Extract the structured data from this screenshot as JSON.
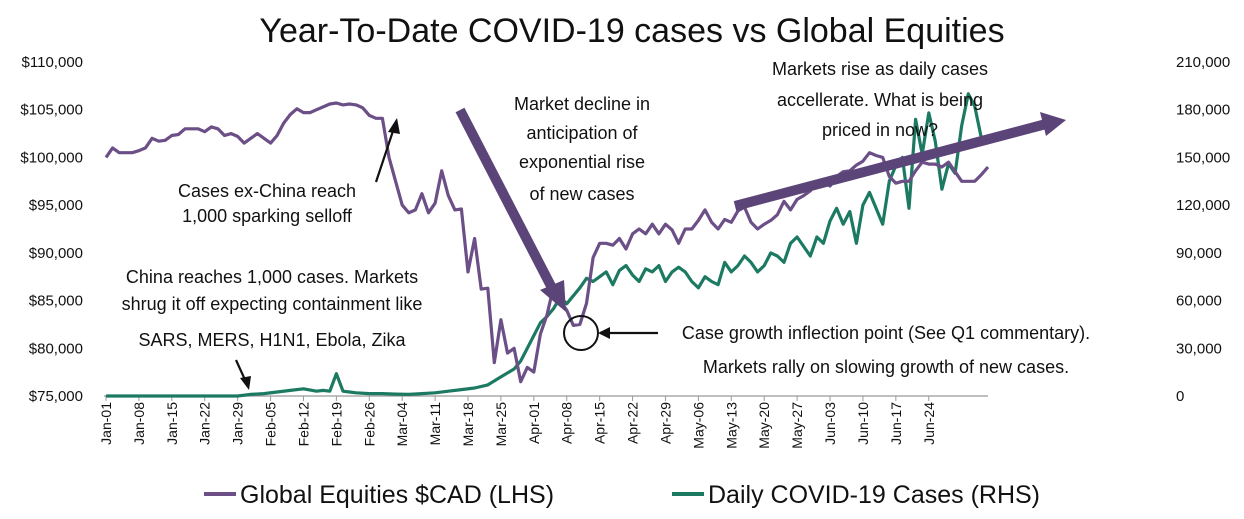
{
  "chart_data": {
    "type": "line",
    "title": "Year-To-Date COVID-19 cases vs Global Equities",
    "x_tick_labels": [
      "Jan-01",
      "Jan-08",
      "Jan-15",
      "Jan-22",
      "Jan-29",
      "Feb-05",
      "Feb-12",
      "Feb-19",
      "Feb-26",
      "Mar-04",
      "Mar-11",
      "Mar-18",
      "Mar-25",
      "Apr-01",
      "Apr-08",
      "Apr-15",
      "Apr-22",
      "Apr-29",
      "May-06",
      "May-13",
      "May-20",
      "May-27",
      "Jun-03",
      "Jun-10",
      "Jun-17",
      "Jun-24"
    ],
    "y_left": {
      "ticks": [
        "$75,000",
        "$80,000",
        "$85,000",
        "$90,000",
        "$95,000",
        "$100,000",
        "$105,000",
        "$110,000"
      ],
      "ylim": [
        75000,
        110000
      ]
    },
    "y_right": {
      "ticks": [
        "0",
        "30,000",
        "60,000",
        "90,000",
        "120,000",
        "150,000",
        "180,000",
        "210,000"
      ],
      "ylim": [
        0,
        210000
      ]
    },
    "series": [
      {
        "name": "Global Equities $CAD (LHS)",
        "axis": "left",
        "color": "#6b4f86",
        "points": [
          [
            0,
            100000
          ],
          [
            1,
            101000
          ],
          [
            2,
            100500
          ],
          [
            3,
            100500
          ],
          [
            4,
            100500
          ],
          [
            5,
            100700
          ],
          [
            6,
            101000
          ],
          [
            7,
            102000
          ],
          [
            8,
            101700
          ],
          [
            9,
            101800
          ],
          [
            10,
            102300
          ],
          [
            11,
            102400
          ],
          [
            12,
            103000
          ],
          [
            13,
            103000
          ],
          [
            14,
            103000
          ],
          [
            15,
            102700
          ],
          [
            16,
            103200
          ],
          [
            17,
            103000
          ],
          [
            18,
            102300
          ],
          [
            19,
            102500
          ],
          [
            20,
            102200
          ],
          [
            21,
            101500
          ],
          [
            22,
            102000
          ],
          [
            23,
            102500
          ],
          [
            24,
            102000
          ],
          [
            25,
            101500
          ],
          [
            26,
            102300
          ],
          [
            27,
            103600
          ],
          [
            28,
            104500
          ],
          [
            29,
            105100
          ],
          [
            30,
            104700
          ],
          [
            31,
            104700
          ],
          [
            32,
            105000
          ],
          [
            33,
            105300
          ],
          [
            34,
            105600
          ],
          [
            35,
            105700
          ],
          [
            36,
            105500
          ],
          [
            37,
            105600
          ],
          [
            38,
            105500
          ],
          [
            39,
            105200
          ],
          [
            40,
            104400
          ],
          [
            41,
            104100
          ],
          [
            42,
            104100
          ],
          [
            43,
            100000
          ],
          [
            44,
            97500
          ],
          [
            45,
            95000
          ],
          [
            46,
            94200
          ],
          [
            47,
            94500
          ],
          [
            48,
            96200
          ],
          [
            49,
            94200
          ],
          [
            50,
            95200
          ],
          [
            51,
            98600
          ],
          [
            52,
            96000
          ],
          [
            53,
            94500
          ],
          [
            54,
            94600
          ],
          [
            55,
            88000
          ],
          [
            56,
            91500
          ],
          [
            57,
            86200
          ],
          [
            58,
            86300
          ],
          [
            59,
            78500
          ],
          [
            60,
            83000
          ],
          [
            61,
            79500
          ],
          [
            62,
            80000
          ],
          [
            63,
            76500
          ],
          [
            64,
            78000
          ],
          [
            65,
            77500
          ],
          [
            66,
            81500
          ],
          [
            67,
            83500
          ],
          [
            68,
            86500
          ],
          [
            69,
            85000
          ],
          [
            70,
            84000
          ],
          [
            71,
            82400
          ],
          [
            72,
            82500
          ],
          [
            73,
            84700
          ],
          [
            74,
            89500
          ],
          [
            75,
            91000
          ],
          [
            76,
            91000
          ],
          [
            77,
            90800
          ],
          [
            78,
            91500
          ],
          [
            79,
            90400
          ],
          [
            80,
            92000
          ],
          [
            81,
            92500
          ],
          [
            82,
            92000
          ],
          [
            83,
            93000
          ],
          [
            84,
            92000
          ],
          [
            85,
            93000
          ],
          [
            86,
            92400
          ],
          [
            87,
            91000
          ],
          [
            88,
            92500
          ],
          [
            89,
            92500
          ],
          [
            90,
            93400
          ],
          [
            91,
            94500
          ],
          [
            92,
            93200
          ],
          [
            93,
            92500
          ],
          [
            94,
            93500
          ],
          [
            95,
            93200
          ],
          [
            96,
            94400
          ],
          [
            97,
            94800
          ],
          [
            98,
            93200
          ],
          [
            99,
            92500
          ],
          [
            100,
            93000
          ],
          [
            101,
            93400
          ],
          [
            102,
            94000
          ],
          [
            103,
            95400
          ],
          [
            104,
            94500
          ],
          [
            105,
            95600
          ],
          [
            106,
            96000
          ],
          [
            107,
            96500
          ],
          [
            108,
            97500
          ],
          [
            109,
            97500
          ],
          [
            110,
            97000
          ],
          [
            111,
            98000
          ],
          [
            112,
            98500
          ],
          [
            113,
            98600
          ],
          [
            114,
            99200
          ],
          [
            115,
            99600
          ],
          [
            116,
            100500
          ],
          [
            117,
            100200
          ],
          [
            118,
            100000
          ],
          [
            119,
            98000
          ],
          [
            120,
            97300
          ],
          [
            121,
            97500
          ],
          [
            122,
            97500
          ],
          [
            123,
            98600
          ],
          [
            124,
            99500
          ],
          [
            125,
            99300
          ],
          [
            126,
            99300
          ],
          [
            127,
            99000
          ],
          [
            128,
            99500
          ],
          [
            129,
            98500
          ],
          [
            130,
            97500
          ],
          [
            131,
            97500
          ],
          [
            132,
            97500
          ],
          [
            133,
            98200
          ],
          [
            134,
            99000
          ]
        ]
      },
      {
        "name": "Daily COVID-19 Cases (RHS)",
        "axis": "right",
        "color": "#1d7a62",
        "points": [
          [
            0,
            0
          ],
          [
            20,
            0
          ],
          [
            22,
            1000
          ],
          [
            24,
            1500
          ],
          [
            26,
            2500
          ],
          [
            28,
            3500
          ],
          [
            30,
            4500
          ],
          [
            32,
            3000
          ],
          [
            33,
            3500
          ],
          [
            34,
            3000
          ],
          [
            35,
            14000
          ],
          [
            36,
            3000
          ],
          [
            37,
            2500
          ],
          [
            38,
            2000
          ],
          [
            40,
            1500
          ],
          [
            42,
            1500
          ],
          [
            44,
            1200
          ],
          [
            46,
            1000
          ],
          [
            48,
            1500
          ],
          [
            50,
            2000
          ],
          [
            52,
            3000
          ],
          [
            54,
            4000
          ],
          [
            56,
            5000
          ],
          [
            58,
            7000
          ],
          [
            60,
            12000
          ],
          [
            62,
            17000
          ],
          [
            63,
            22000
          ],
          [
            64,
            30000
          ],
          [
            65,
            38000
          ],
          [
            66,
            46000
          ],
          [
            67,
            50000
          ],
          [
            68,
            55000
          ],
          [
            69,
            62000
          ],
          [
            70,
            58000
          ],
          [
            71,
            63000
          ],
          [
            72,
            68000
          ],
          [
            73,
            74000
          ],
          [
            74,
            72000
          ],
          [
            75,
            75000
          ],
          [
            76,
            78000
          ],
          [
            77,
            70000
          ],
          [
            78,
            79000
          ],
          [
            79,
            82000
          ],
          [
            80,
            76000
          ],
          [
            81,
            72000
          ],
          [
            82,
            80000
          ],
          [
            83,
            78000
          ],
          [
            84,
            82000
          ],
          [
            85,
            72000
          ],
          [
            86,
            78000
          ],
          [
            87,
            81000
          ],
          [
            88,
            78000
          ],
          [
            89,
            72000
          ],
          [
            90,
            68000
          ],
          [
            91,
            75000
          ],
          [
            92,
            72000
          ],
          [
            93,
            70000
          ],
          [
            94,
            84000
          ],
          [
            95,
            78000
          ],
          [
            96,
            82000
          ],
          [
            97,
            88000
          ],
          [
            98,
            84000
          ],
          [
            99,
            78000
          ],
          [
            100,
            82000
          ],
          [
            101,
            90000
          ],
          [
            102,
            88000
          ],
          [
            103,
            84000
          ],
          [
            104,
            96000
          ],
          [
            105,
            100000
          ],
          [
            106,
            94000
          ],
          [
            107,
            88000
          ],
          [
            108,
            100000
          ],
          [
            109,
            96000
          ],
          [
            110,
            110000
          ],
          [
            111,
            118000
          ],
          [
            112,
            108000
          ],
          [
            113,
            116000
          ],
          [
            114,
            96000
          ],
          [
            115,
            120000
          ],
          [
            116,
            128000
          ],
          [
            117,
            118000
          ],
          [
            118,
            108000
          ],
          [
            119,
            135000
          ],
          [
            120,
            145000
          ],
          [
            121,
            150000
          ],
          [
            122,
            118000
          ],
          [
            123,
            174000
          ],
          [
            124,
            152000
          ],
          [
            125,
            178000
          ],
          [
            126,
            160000
          ],
          [
            127,
            130000
          ],
          [
            128,
            146000
          ],
          [
            129,
            140000
          ],
          [
            130,
            170000
          ],
          [
            131,
            190000
          ],
          [
            132,
            182000
          ],
          [
            133,
            162000
          ],
          [
            134,
            160000
          ]
        ]
      }
    ],
    "annotations": [
      "Cases ex-China reach",
      "1,000 sparking selloff",
      "China reaches 1,000 cases. Markets",
      "shrug it off expecting containment like",
      "SARS, MERS, H1N1, Ebola, Zika",
      "Market decline in",
      "anticipation of",
      "exponential rise",
      "of new cases",
      "Markets rise as daily cases",
      "accellerate. What is being",
      "priced in now?",
      "Case growth inflection point (See Q1 commentary).",
      "Markets rally on slowing growth of new cases."
    ],
    "legend_position": "bottom",
    "colors": {
      "equities": "#6b4f86",
      "cases": "#1d7a62",
      "arrow": "#5b4478",
      "text": "#111111"
    }
  }
}
